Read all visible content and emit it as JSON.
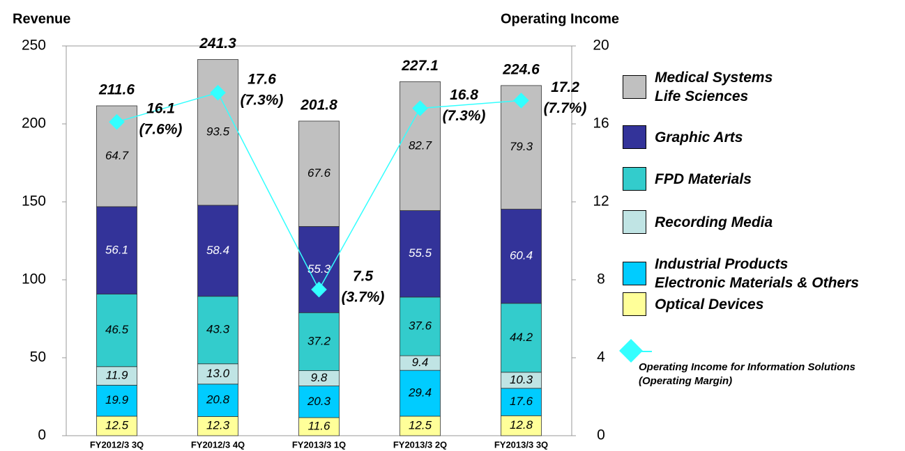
{
  "chart_data": {
    "type": "stacked-bar-line",
    "ylabel": "Revenue",
    "y2label": "Operating Income",
    "categories": [
      "FY2012/3 3Q",
      "FY2012/3 4Q",
      "FY2013/3 1Q",
      "FY2013/3 2Q",
      "FY2013/3 3Q"
    ],
    "series": [
      {
        "name": "Optical Devices",
        "color": "#ffff99",
        "label_color": "#000000",
        "values": [
          12.5,
          12.3,
          11.6,
          12.5,
          12.8
        ]
      },
      {
        "name": "Industrial Products\nElectronic Materials & Others",
        "color": "#00ccff",
        "label_color": "#000000",
        "values": [
          19.9,
          20.8,
          20.3,
          29.4,
          17.6
        ]
      },
      {
        "name": "Recording Media",
        "color": "#c0e4e4",
        "label_color": "#000000",
        "values": [
          11.9,
          13.0,
          9.8,
          9.4,
          10.3
        ],
        "value_labels": [
          "11.9",
          "13.0",
          "9.8",
          "9.4",
          "10.3"
        ]
      },
      {
        "name": "FPD Materials",
        "color": "#33cccc",
        "label_color": "#000000",
        "values": [
          46.5,
          43.3,
          37.2,
          37.6,
          44.2
        ]
      },
      {
        "name": "Graphic Arts",
        "color": "#333399",
        "label_color": "#ffffff",
        "values": [
          56.1,
          58.4,
          55.3,
          55.5,
          60.4
        ]
      },
      {
        "name": "Medical Systems\nLife Sciences",
        "color": "#c0c0c0",
        "label_color": "#000000",
        "values": [
          64.7,
          93.5,
          67.6,
          82.7,
          79.3
        ]
      },
      {
        "name": "Operating Income for Information Solutions\n(Operating Margin)",
        "color": "#33ffff",
        "axis": "y2",
        "type": "line",
        "values": [
          16.1,
          17.6,
          7.5,
          16.8,
          17.2
        ],
        "margins": [
          "(7.6%)",
          "(7.3%)",
          "(3.7%)",
          "(7.3%)",
          "(7.7%)"
        ]
      }
    ],
    "totals": [
      211.6,
      241.3,
      201.8,
      227.1,
      224.6
    ],
    "ylim": [
      0,
      250
    ],
    "yticks": [
      0,
      50,
      100,
      150,
      200,
      250
    ],
    "y2lim": [
      0,
      20
    ],
    "y2ticks": [
      0,
      4,
      8,
      12,
      16,
      20
    ]
  }
}
